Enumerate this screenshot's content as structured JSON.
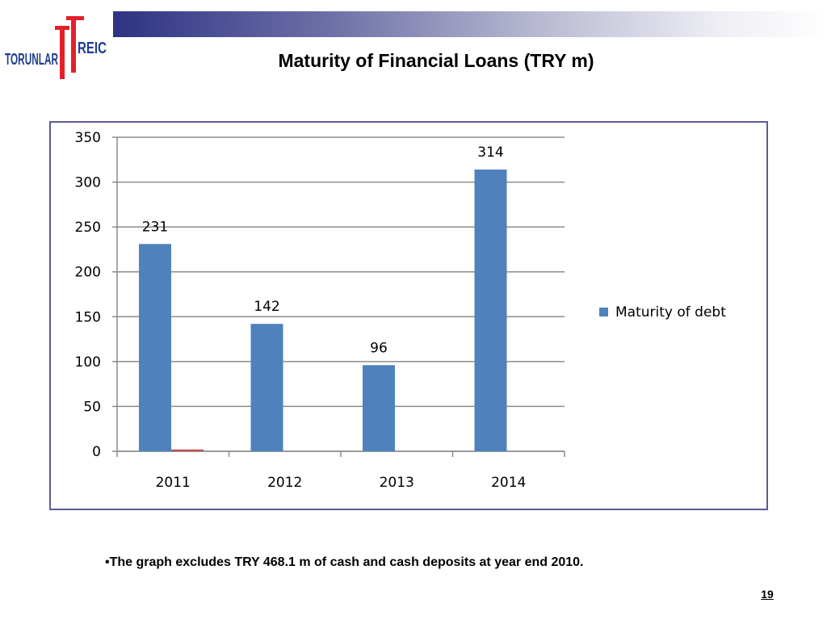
{
  "header": {
    "logo_text_left": "TORUNLAR",
    "logo_text_right": "REIC",
    "logo_color": "#1f3f8f",
    "logo_accent": "#e3202a"
  },
  "slide": {
    "title": "Maturity of Financial Loans (TRY m)",
    "footnote": "•The graph excludes TRY 468.1 m of cash and cash deposits at year end 2010.",
    "page_number": "19"
  },
  "chart_data": {
    "type": "bar",
    "title": "",
    "categories": [
      "2011",
      "2012",
      "2013",
      "2014"
    ],
    "series": [
      {
        "name": "Maturity of debt",
        "values": [
          231,
          142,
          96,
          314
        ],
        "color": "#4f81bd"
      },
      {
        "values": [
          2,
          0,
          0,
          0
        ],
        "color": "#c0504d"
      }
    ],
    "data_labels": [
      "231",
      "142",
      "96",
      "314"
    ],
    "y_ticks": [
      "0",
      "50",
      "100",
      "150",
      "200",
      "250",
      "300",
      "350"
    ],
    "ylim": [
      0,
      350
    ],
    "grid": true,
    "legend": "right"
  }
}
